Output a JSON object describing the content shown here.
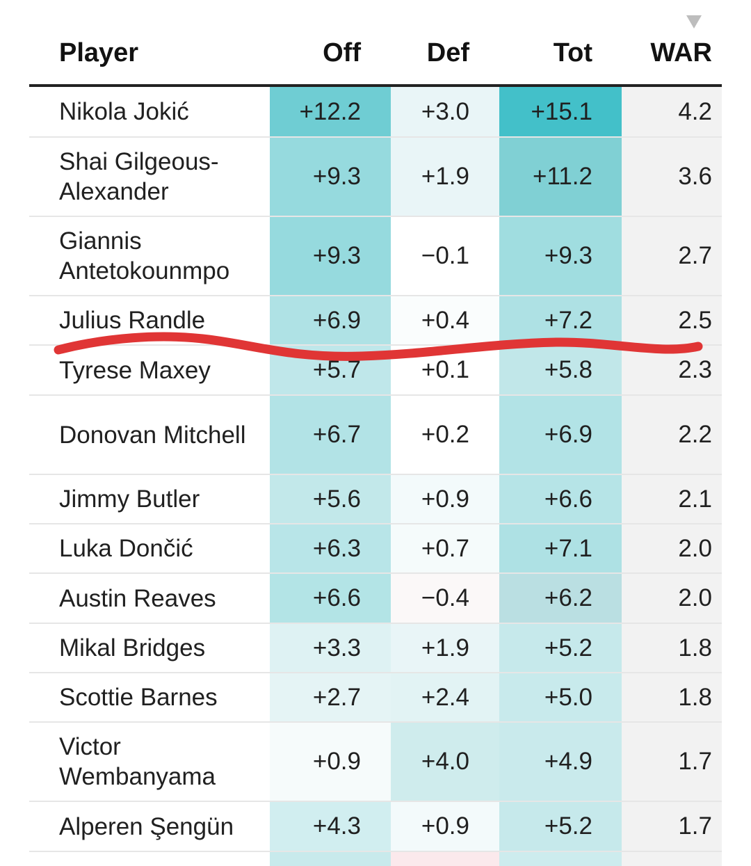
{
  "header": {
    "player": "Player",
    "off": "Off",
    "def": "Def",
    "tot": "Tot",
    "war": "WAR",
    "sorted_column": "WAR",
    "sort_direction": "descending"
  },
  "rows": [
    {
      "player": "Nikola Jokić",
      "off": "+12.2",
      "def": "+3.0",
      "tot": "+15.1",
      "war": "4.2",
      "off_color": "#6fcdd3",
      "def_color": "#e9f5f7",
      "tot_color": "#43c0c9"
    },
    {
      "player": "Shai Gilgeous-Alexander",
      "off": "+9.3",
      "def": "+1.9",
      "tot": "+11.2",
      "war": "3.6",
      "off_color": "#96dade",
      "def_color": "#e9f5f7",
      "tot_color": "#80d0d4"
    },
    {
      "player": "Giannis Antetokounmpo",
      "off": "+9.3",
      "def": "−0.1",
      "tot": "+9.3",
      "war": "2.7",
      "off_color": "#96dade",
      "def_color": "#ffffff",
      "tot_color": "#a0dde0"
    },
    {
      "player": "Julius Randle",
      "off": "+6.9",
      "def": "+0.4",
      "tot": "+7.2",
      "war": "2.5",
      "off_color": "#afe2e5",
      "def_color": "#fafdfd",
      "tot_color": "#aee1e4"
    },
    {
      "player": "Tyrese Maxey",
      "off": "+5.7",
      "def": "+0.1",
      "tot": "+5.8",
      "war": "2.3",
      "off_color": "#bfe7ea",
      "def_color": "#ffffff",
      "tot_color": "#c1e7e9"
    },
    {
      "player": "Donovan Mitchell",
      "off": "+6.7",
      "def": "+0.2",
      "tot": "+6.9",
      "war": "2.2",
      "off_color": "#b2e3e6",
      "def_color": "#ffffff",
      "tot_color": "#b2e3e6"
    },
    {
      "player": "Jimmy Butler",
      "off": "+5.6",
      "def": "+0.9",
      "tot": "+6.6",
      "war": "2.1",
      "off_color": "#c2e8ea",
      "def_color": "#f3fafb",
      "tot_color": "#b6e4e7"
    },
    {
      "player": "Luka Dončić",
      "off": "+6.3",
      "def": "+0.7",
      "tot": "+7.1",
      "war": "2.0",
      "off_color": "#b8e5e8",
      "def_color": "#f5fbfb",
      "tot_color": "#aee1e4"
    },
    {
      "player": "Austin Reaves",
      "off": "+6.6",
      "def": "−0.4",
      "tot": "+6.2",
      "war": "2.0",
      "off_color": "#b3e4e6",
      "def_color": "#fbf8f8",
      "tot_color": "#badfe2"
    },
    {
      "player": "Mikal Bridges",
      "off": "+3.3",
      "def": "+1.9",
      "tot": "+5.2",
      "war": "1.8",
      "off_color": "#def2f3",
      "def_color": "#e9f5f7",
      "tot_color": "#c6e9eb"
    },
    {
      "player": "Scottie Barnes",
      "off": "+2.7",
      "def": "+2.4",
      "tot": "+5.0",
      "war": "1.8",
      "off_color": "#e5f4f5",
      "def_color": "#e2f3f4",
      "tot_color": "#c8eaec"
    },
    {
      "player": "Victor Wembanyama",
      "off": "+0.9",
      "def": "+4.0",
      "tot": "+4.9",
      "war": "1.7",
      "off_color": "#f6fbfb",
      "def_color": "#cfeced",
      "tot_color": "#c9eaec"
    },
    {
      "player": "Alperen Şengün",
      "off": "+4.3",
      "def": "+0.9",
      "tot": "+5.2",
      "war": "1.7",
      "off_color": "#d1eef0",
      "def_color": "#f3fafb",
      "tot_color": "#c6e9eb"
    }
  ],
  "partial_row": {
    "off_color": "#c8eaec",
    "def_color": "#fbe9ec",
    "tot_color": "#cdecee"
  },
  "annotation": {
    "type": "hand-drawn line",
    "color": "#e03535",
    "placed_after_row": "Julius Randle"
  }
}
